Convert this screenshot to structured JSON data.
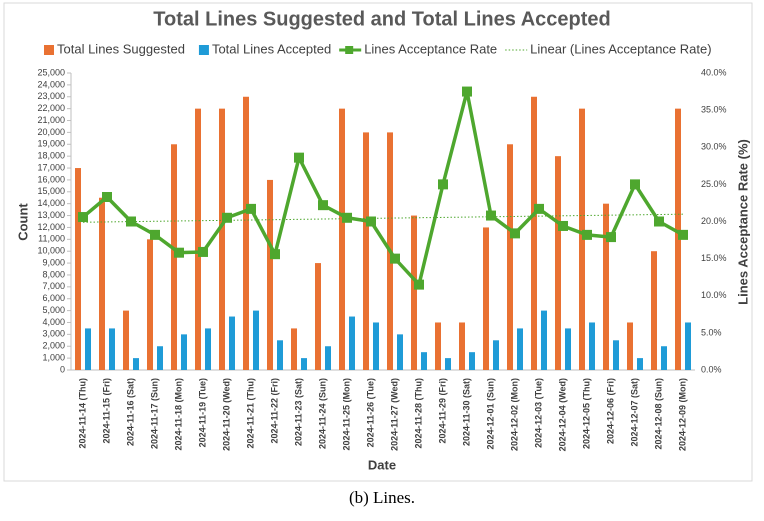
{
  "chart_data": {
    "type": "bar_line",
    "title": "Total Lines Suggested and Total Lines Accepted",
    "caption": "(b) Lines.",
    "xlabel": "Date",
    "ylabel": "Count",
    "y2label": "Lines Acceptance Rate (%)",
    "categories": [
      "2024-11-14 (Thu)",
      "2024-11-15 (Fri)",
      "2024-11-16 (Sat)",
      "2024-11-17 (Sun)",
      "2024-11-18 (Mon)",
      "2024-11-19 (Tue)",
      "2024-11-20 (Wed)",
      "2024-11-21 (Thu)",
      "2024-11-22 (Fri)",
      "2024-11-23 (Sat)",
      "2024-11-24 (Sun)",
      "2024-11-25 (Mon)",
      "2024-11-26 (Tue)",
      "2024-11-27 (Wed)",
      "2024-11-28 (Thu)",
      "2024-11-29 (Fri)",
      "2024-11-30 (Sat)",
      "2024-12-01 (Sun)",
      "2024-12-02 (Mon)",
      "2024-12-03 (Tue)",
      "2024-12-04 (Wed)",
      "2024-12-05 (Thu)",
      "2024-12-06 (Fri)",
      "2024-12-07 (Sat)",
      "2024-12-08 (Sun)",
      "2024-12-09 (Mon)"
    ],
    "series": [
      {
        "name": "Total Lines Suggested",
        "type": "bar",
        "color": "#e97132",
        "values": [
          17000,
          14500,
          5000,
          11000,
          19000,
          22000,
          22000,
          23000,
          16000,
          3500,
          9000,
          22000,
          20000,
          20000,
          13000,
          4000,
          4000,
          12000,
          19000,
          23000,
          18000,
          22000,
          14000,
          4000,
          10000,
          22000
        ]
      },
      {
        "name": "Total Lines Accepted",
        "type": "bar",
        "color": "#1f9bd7",
        "values": [
          3500,
          3500,
          1000,
          2000,
          3000,
          3500,
          4500,
          5000,
          2500,
          1000,
          2000,
          4500,
          4000,
          3000,
          1500,
          1000,
          1500,
          2500,
          3500,
          5000,
          3500,
          4000,
          2500,
          1000,
          2000,
          4000
        ]
      },
      {
        "name": "Lines Acceptance Rate",
        "type": "line",
        "axis": "y2",
        "color": "#4ea72e",
        "values": [
          20.6,
          23.3,
          20.0,
          18.2,
          15.8,
          15.9,
          20.5,
          21.7,
          15.6,
          28.6,
          22.2,
          20.5,
          20.0,
          15.0,
          11.5,
          25.0,
          37.5,
          20.8,
          18.4,
          21.7,
          19.4,
          18.2,
          17.9,
          25.0,
          20.0,
          18.2
        ]
      }
    ],
    "trendline": {
      "name": "Linear (Lines Acceptance Rate)",
      "kind": "linear",
      "series": 2,
      "color": "#4ea72e"
    },
    "ylim": [
      0,
      25000
    ],
    "yticks": [
      0,
      {
        "value": 1000,
        "label": "1,000"
      },
      {
        "value": 2000,
        "label": "2,000"
      },
      {
        "value": 3000,
        "label": "3,000"
      },
      {
        "value": 4000,
        "label": "4,000"
      },
      {
        "value": 5000,
        "label": "5,000"
      },
      {
        "value": 6000,
        "label": "6,000"
      },
      {
        "value": 7000,
        "label": "7,000"
      },
      {
        "value": 8000,
        "label": "8,000"
      },
      {
        "value": 9000,
        "label": "9,000"
      },
      {
        "value": 10000,
        "label": "10,000"
      },
      {
        "value": 11000,
        "label": "11,000"
      },
      {
        "value": 12000,
        "label": "12,000"
      },
      {
        "value": 13000,
        "label": "13,000"
      },
      {
        "value": 14000,
        "label": "14,000"
      },
      {
        "value": 15000,
        "label": "15,000"
      },
      {
        "value": 16000,
        "label": "16,000"
      },
      {
        "value": 17000,
        "label": "17,000"
      },
      {
        "value": 18000,
        "label": "18,000"
      },
      {
        "value": 19000,
        "label": "19,000"
      },
      {
        "value": 20000,
        "label": "20,000"
      },
      {
        "value": 21000,
        "label": "21,000"
      },
      {
        "value": 22000,
        "label": "22,000"
      },
      {
        "value": 23000,
        "label": "23,000"
      },
      {
        "value": 24000,
        "label": "24,000"
      },
      {
        "value": 25000,
        "label": "25,000"
      }
    ],
    "y2lim": [
      0,
      40
    ],
    "y2ticks": [
      {
        "value": 0,
        "label": "0.0%"
      },
      {
        "value": 5,
        "label": "5.0%"
      },
      {
        "value": 10,
        "label": "10.0%"
      },
      {
        "value": 15,
        "label": "15.0%"
      },
      {
        "value": 20,
        "label": "20.0%"
      },
      {
        "value": 25,
        "label": "25.0%"
      },
      {
        "value": 30,
        "label": "30.0%"
      },
      {
        "value": 35,
        "label": "35.0%"
      },
      {
        "value": 40,
        "label": "40.0%"
      }
    ],
    "grid": false,
    "legend": "top"
  }
}
